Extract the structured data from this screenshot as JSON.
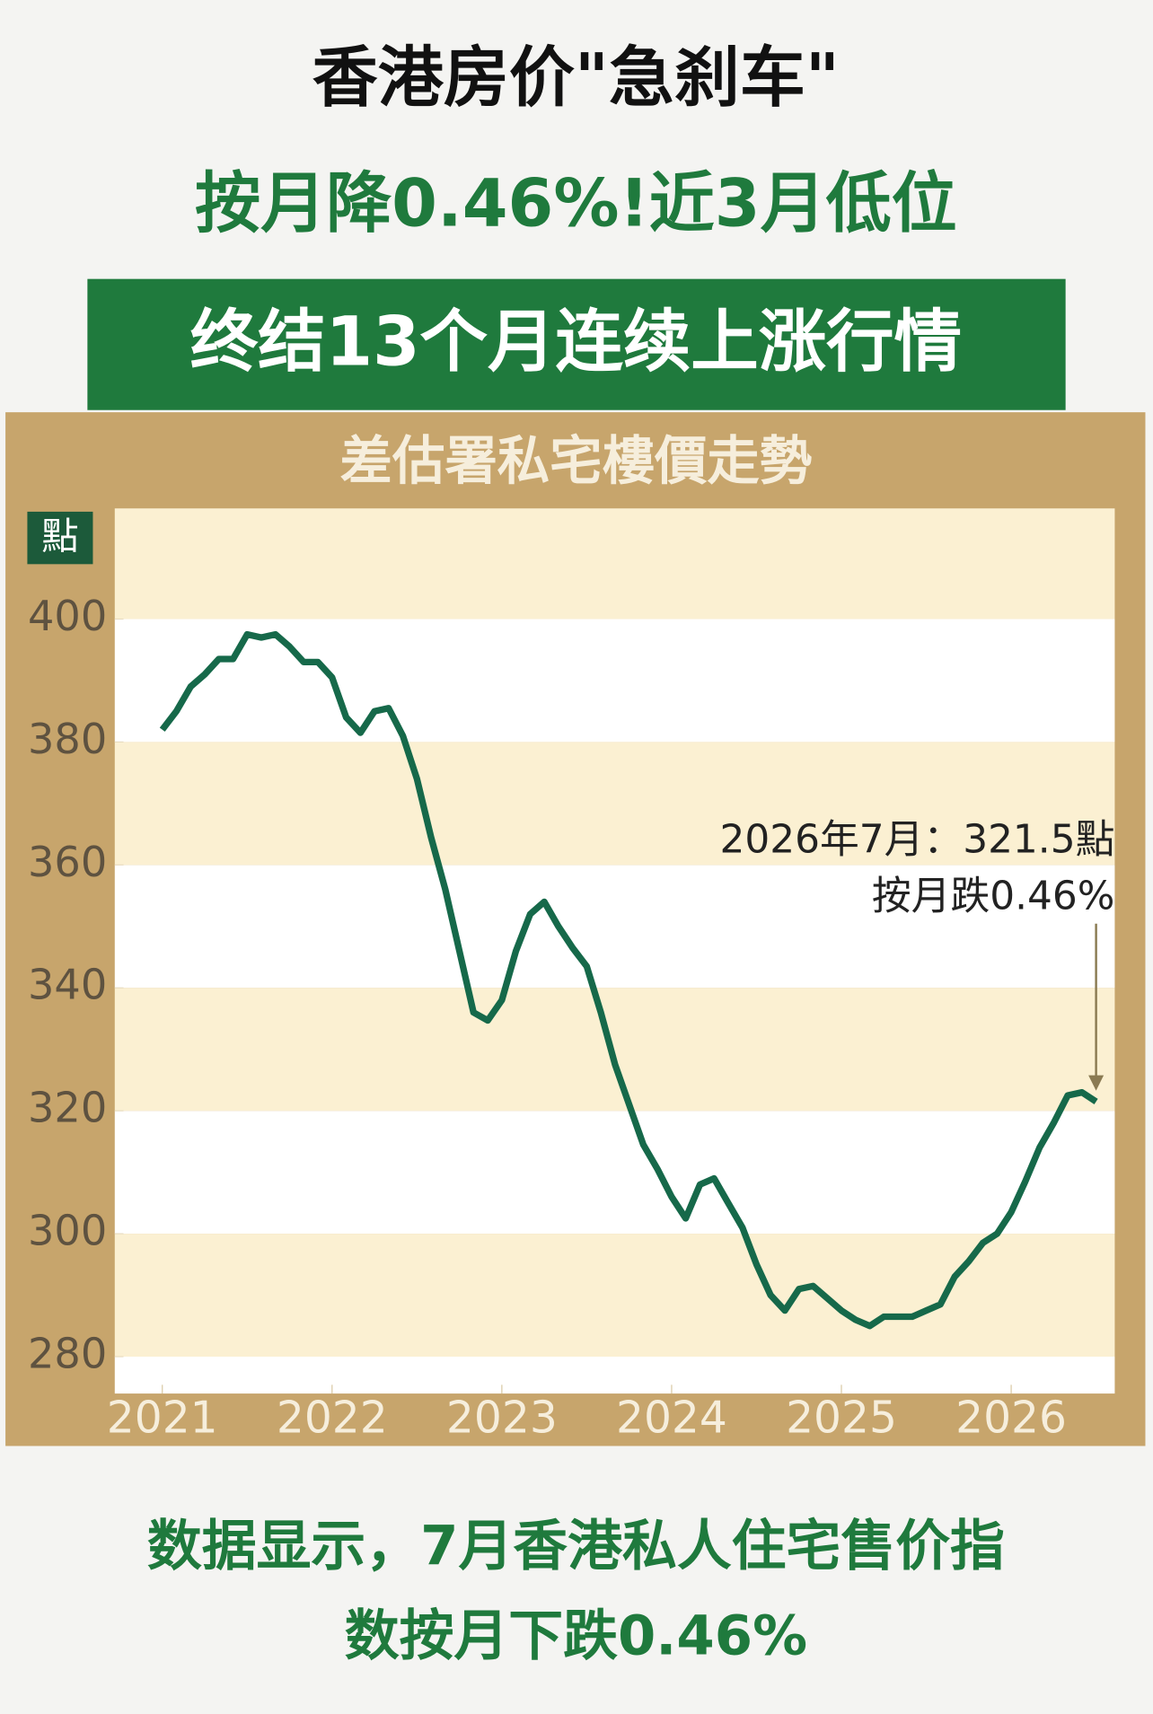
{
  "headline": [
    "香港房价\"急刹车\"",
    "按月降0.46%!近3月低位"
  ],
  "banner": "终结13个月连续上涨行情",
  "chart_data": {
    "type": "line",
    "title": "差估署私宅樓價走勢",
    "y_unit": "點",
    "color": "#16694a",
    "x": [
      2021,
      2021.083,
      2021.167,
      2021.25,
      2021.333,
      2021.417,
      2021.5,
      2021.583,
      2021.667,
      2021.75,
      2021.833,
      2021.917,
      2022,
      2022.083,
      2022.167,
      2022.25,
      2022.333,
      2022.417,
      2022.5,
      2022.583,
      2022.667,
      2022.75,
      2022.833,
      2022.917,
      2023,
      2023.083,
      2023.167,
      2023.25,
      2023.333,
      2023.417,
      2023.5,
      2023.583,
      2023.667,
      2023.75,
      2023.833,
      2023.917,
      2024,
      2024.083,
      2024.167,
      2024.25,
      2024.333,
      2024.417,
      2024.5,
      2024.583,
      2024.667,
      2024.75,
      2024.833,
      2024.917,
      2025,
      2025.083,
      2025.167,
      2025.25,
      2025.333,
      2025.417,
      2025.5,
      2025.583,
      2025.667,
      2025.75,
      2025.833,
      2025.917,
      2026,
      2026.083,
      2026.167,
      2026.25,
      2026.333,
      2026.417,
      2026.5
    ],
    "values": [
      382,
      385,
      389,
      391,
      393.5,
      393.5,
      397.5,
      397,
      397.5,
      395.5,
      393,
      393,
      390.5,
      384,
      381.5,
      385,
      385.5,
      381,
      374,
      364.5,
      356,
      346,
      336,
      334.7,
      338,
      346,
      352,
      354,
      350,
      346.5,
      343.5,
      336,
      327.5,
      321,
      314.5,
      310.5,
      306,
      302.5,
      308,
      309,
      305,
      301,
      295,
      290,
      287.5,
      291,
      291.5,
      289.5,
      287.5,
      286,
      285,
      286.5,
      286.5,
      286.5,
      287.5,
      288.5,
      293,
      295.5,
      298.5,
      300,
      303.5,
      308.5,
      314,
      318,
      322.5,
      323,
      321.5
    ],
    "xlim": [
      2020.72,
      2026.61
    ],
    "xticks": [
      2021,
      2022,
      2023,
      2024,
      2025,
      2026
    ],
    "ylim": [
      274,
      418
    ],
    "yticks": [
      280,
      300,
      320,
      340,
      360,
      380,
      400
    ],
    "annotation": [
      "2026年7月：321.5點",
      "按月跌0.46%"
    ]
  },
  "caption": [
    "数据显示，7月香港私人住宅售价指",
    "数按月下跌0.46%"
  ]
}
